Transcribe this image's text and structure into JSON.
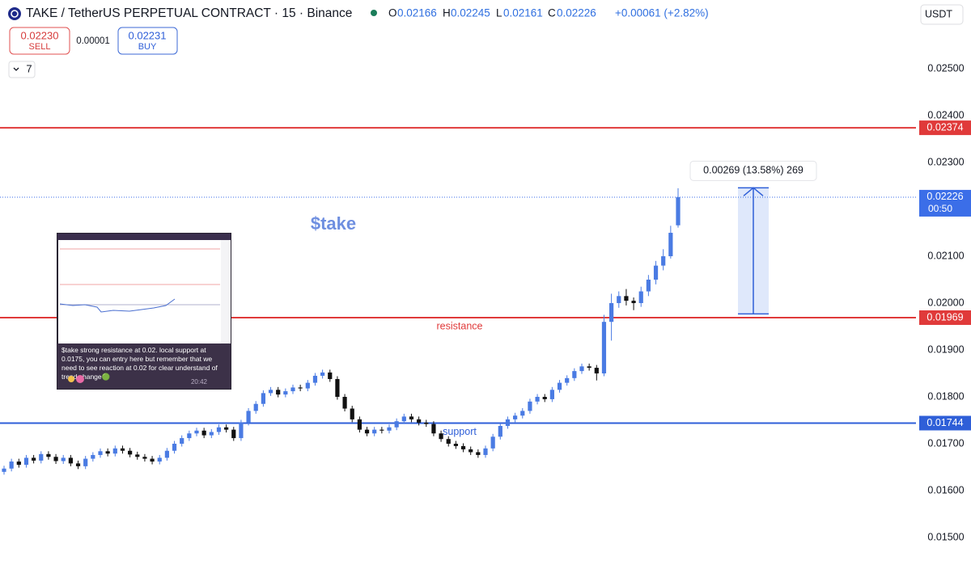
{
  "chart_data": {
    "type": "candlestick",
    "title": "TAKE / TetherUS PERPETUAL CONTRACT · 15 · Binance",
    "ohlc_labels": [
      "O",
      "H",
      "L",
      "C"
    ],
    "change": "+0.00061 (+2.82%)",
    "sell": {
      "price": "0.02230",
      "label": "SELL"
    },
    "spread": "0.00001",
    "buy": {
      "price": "0.02231",
      "label": "BUY"
    },
    "indicator_count": "7",
    "currency": "USDT",
    "countdown": "00:50",
    "up_color": "#4a7be3",
    "down_color": "#111111",
    "ylim": [
      0.014414,
      0.026466
    ],
    "yticks": [
      {
        "value": 0.015,
        "label": "0.01500"
      },
      {
        "value": 0.016,
        "label": "0.01600"
      },
      {
        "value": 0.017,
        "label": "0.01700"
      },
      {
        "value": 0.018,
        "label": "0.01800"
      },
      {
        "value": 0.019,
        "label": "0.01900"
      },
      {
        "value": 0.02,
        "label": "0.02000"
      },
      {
        "value": 0.021,
        "label": "0.02100"
      },
      {
        "value": 0.023,
        "label": "0.02300"
      },
      {
        "value": 0.024,
        "label": "0.02400"
      },
      {
        "value": 0.025,
        "label": "0.02500"
      }
    ],
    "levels": [
      {
        "value": 0.02374,
        "color": "#e03a3a"
      },
      {
        "value": 0.01969,
        "color": "#e03a3a",
        "label": "resistance"
      },
      {
        "value": 0.01744,
        "color": "#2f5fd8",
        "label": "support"
      }
    ],
    "annotation": "$take",
    "measure": {
      "label": "0.00269 (13.58%) 269",
      "from": 0.01977,
      "to": 0.02246
    },
    "inset": {
      "text": "$take strong resistance at 0.02. local support at 0.0175, you can entry here but remember that we need to see reaction at 0.02 for clear understand of trend change🟢",
      "time": "20:42"
    },
    "open": [
      0.0164,
      0.01647,
      0.01662,
      0.01655,
      0.0167,
      0.01664,
      0.01678,
      0.01672,
      0.01663,
      0.0167,
      0.01658,
      0.01652,
      0.01668,
      0.01676,
      0.01684,
      0.01679,
      0.0169,
      0.01685,
      0.01677,
      0.01672,
      0.01668,
      0.01662,
      0.0167,
      0.01685,
      0.017,
      0.01712,
      0.01722,
      0.01728,
      0.01718,
      0.01725,
      0.01735,
      0.0173,
      0.01712,
      0.01745,
      0.0177,
      0.01785,
      0.01808,
      0.01815,
      0.01805,
      0.01812,
      0.0182,
      0.01818,
      0.0183,
      0.01845,
      0.01852,
      0.01838,
      0.018,
      0.01775,
      0.01752,
      0.0173,
      0.01722,
      0.0173,
      0.01728,
      0.01735,
      0.01748,
      0.01758,
      0.01752,
      0.01745,
      0.01742,
      0.01722,
      0.0171,
      0.017,
      0.01695,
      0.01688,
      0.01682,
      0.01676,
      0.0169,
      0.01715,
      0.01738,
      0.01752,
      0.0176,
      0.0177,
      0.0179,
      0.018,
      0.01795,
      0.01815,
      0.0183,
      0.0184,
      0.01855,
      0.01865,
      0.01862,
      0.0185,
      0.0196,
      0.02,
      0.02015,
      0.02005,
      0.02,
      0.02025,
      0.0205,
      0.0208,
      0.021,
      0.02166
    ],
    "high": [
      0.01653,
      0.01668,
      0.01668,
      0.01676,
      0.01676,
      0.01684,
      0.01684,
      0.01678,
      0.01676,
      0.01676,
      0.01664,
      0.01674,
      0.01682,
      0.0169,
      0.0169,
      0.01696,
      0.01696,
      0.01691,
      0.01683,
      0.01678,
      0.01674,
      0.01676,
      0.01691,
      0.01706,
      0.01718,
      0.01728,
      0.01734,
      0.01734,
      0.01731,
      0.01741,
      0.01741,
      0.01736,
      0.01751,
      0.01776,
      0.01791,
      0.01814,
      0.01821,
      0.01821,
      0.01818,
      0.01826,
      0.01826,
      0.01836,
      0.01851,
      0.01858,
      0.01858,
      0.01844,
      0.01806,
      0.01781,
      0.01758,
      0.01736,
      0.01736,
      0.01736,
      0.01741,
      0.01754,
      0.01764,
      0.01764,
      0.01758,
      0.01751,
      0.01748,
      0.01728,
      0.01716,
      0.01706,
      0.01701,
      0.01694,
      0.01688,
      0.01696,
      0.01721,
      0.01744,
      0.01758,
      0.01766,
      0.01776,
      0.01796,
      0.01806,
      0.01806,
      0.01821,
      0.01836,
      0.01846,
      0.01861,
      0.01871,
      0.01871,
      0.01868,
      0.01975,
      0.0202,
      0.02025,
      0.0203,
      0.02012,
      0.02035,
      0.0206,
      0.0209,
      0.02115,
      0.02165,
      0.02245
    ],
    "low": [
      0.01634,
      0.01641,
      0.01649,
      0.01649,
      0.01658,
      0.01658,
      0.01666,
      0.01657,
      0.01657,
      0.01652,
      0.01646,
      0.01646,
      0.01662,
      0.0167,
      0.01673,
      0.01673,
      0.01679,
      0.01671,
      0.01666,
      0.01662,
      0.01656,
      0.01656,
      0.01664,
      0.01679,
      0.01694,
      0.01706,
      0.01716,
      0.01712,
      0.01712,
      0.01719,
      0.01724,
      0.01706,
      0.01706,
      0.01739,
      0.01764,
      0.01779,
      0.01802,
      0.01799,
      0.01799,
      0.01806,
      0.01812,
      0.01812,
      0.01824,
      0.01839,
      0.01832,
      0.01794,
      0.01769,
      0.01746,
      0.01724,
      0.01716,
      0.01716,
      0.01722,
      0.01722,
      0.01729,
      0.01742,
      0.01746,
      0.01739,
      0.01736,
      0.01716,
      0.01704,
      0.01694,
      0.01689,
      0.01682,
      0.01676,
      0.0167,
      0.0167,
      0.01684,
      0.01709,
      0.01732,
      0.01746,
      0.01754,
      0.01764,
      0.01784,
      0.01789,
      0.01789,
      0.01809,
      0.01824,
      0.01834,
      0.01849,
      0.01856,
      0.01835,
      0.01844,
      0.0192,
      0.0199,
      0.01995,
      0.01985,
      0.01992,
      0.02015,
      0.0204,
      0.0207,
      0.02095,
      0.02161
    ],
    "close": [
      0.01647,
      0.01662,
      0.01655,
      0.0167,
      0.01664,
      0.01678,
      0.01672,
      0.01663,
      0.0167,
      0.01658,
      0.01652,
      0.01668,
      0.01676,
      0.01684,
      0.01679,
      0.0169,
      0.01685,
      0.01677,
      0.01672,
      0.01668,
      0.01662,
      0.0167,
      0.01685,
      0.017,
      0.01712,
      0.01722,
      0.01728,
      0.01718,
      0.01725,
      0.01735,
      0.0173,
      0.01712,
      0.01745,
      0.0177,
      0.01785,
      0.01808,
      0.01815,
      0.01805,
      0.01812,
      0.0182,
      0.01818,
      0.0183,
      0.01845,
      0.01852,
      0.01838,
      0.018,
      0.01775,
      0.01752,
      0.0173,
      0.01722,
      0.0173,
      0.01728,
      0.01735,
      0.01748,
      0.01758,
      0.01752,
      0.01745,
      0.01742,
      0.01722,
      0.0171,
      0.017,
      0.01695,
      0.01688,
      0.01682,
      0.01676,
      0.0169,
      0.01715,
      0.01738,
      0.01752,
      0.0176,
      0.0177,
      0.0179,
      0.018,
      0.01795,
      0.01815,
      0.0183,
      0.0184,
      0.01855,
      0.01865,
      0.01862,
      0.0185,
      0.0196,
      0.02,
      0.02015,
      0.02005,
      0.02,
      0.02025,
      0.0205,
      0.0208,
      0.021,
      0.0215,
      0.02226
    ]
  }
}
